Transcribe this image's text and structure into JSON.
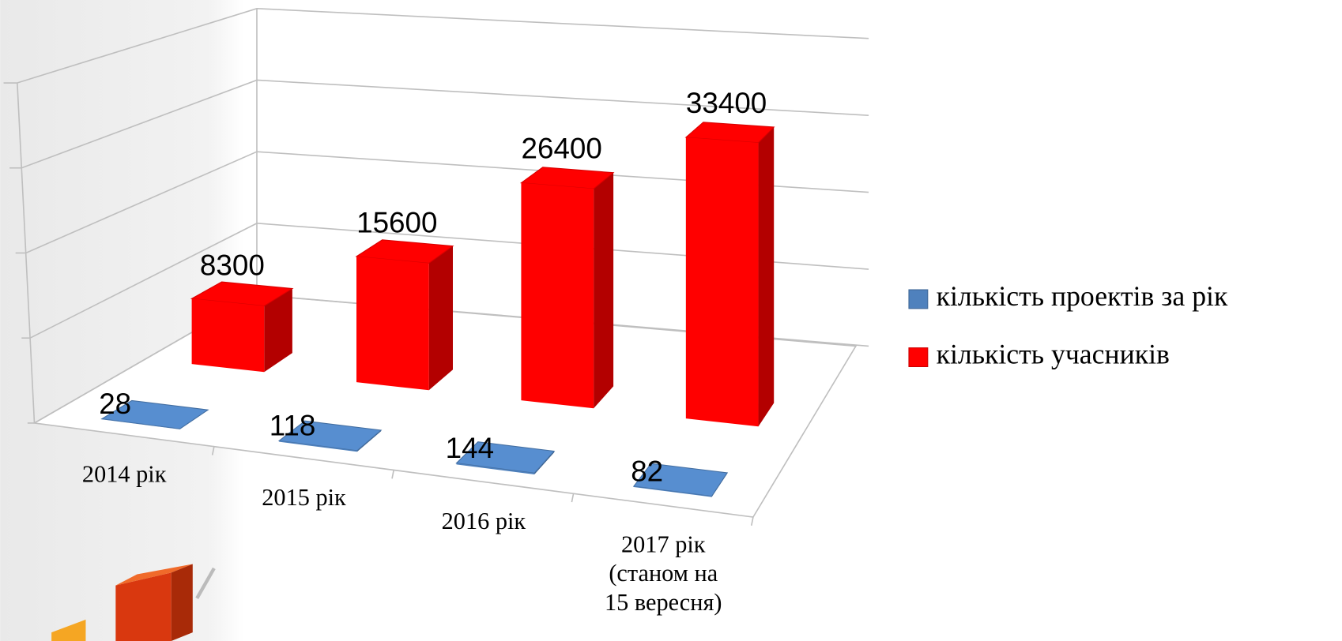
{
  "chart_data": {
    "type": "bar3d",
    "categories": [
      "2014 рік",
      "2015 рік",
      "2016 рік",
      "2017 рік\n(станом на\n15 вересня)"
    ],
    "series": [
      {
        "name": "кількість проектів за рік",
        "color": "#4f81bd",
        "values": [
          28,
          118,
          144,
          82
        ]
      },
      {
        "name": "кількість учасників",
        "color": "#ff0000",
        "values": [
          8300,
          15600,
          26400,
          33400
        ]
      }
    ],
    "ylim": [
      0,
      40000
    ],
    "yticks": [
      0,
      10000,
      20000,
      30000,
      40000
    ],
    "grid": true,
    "legend": "right"
  }
}
